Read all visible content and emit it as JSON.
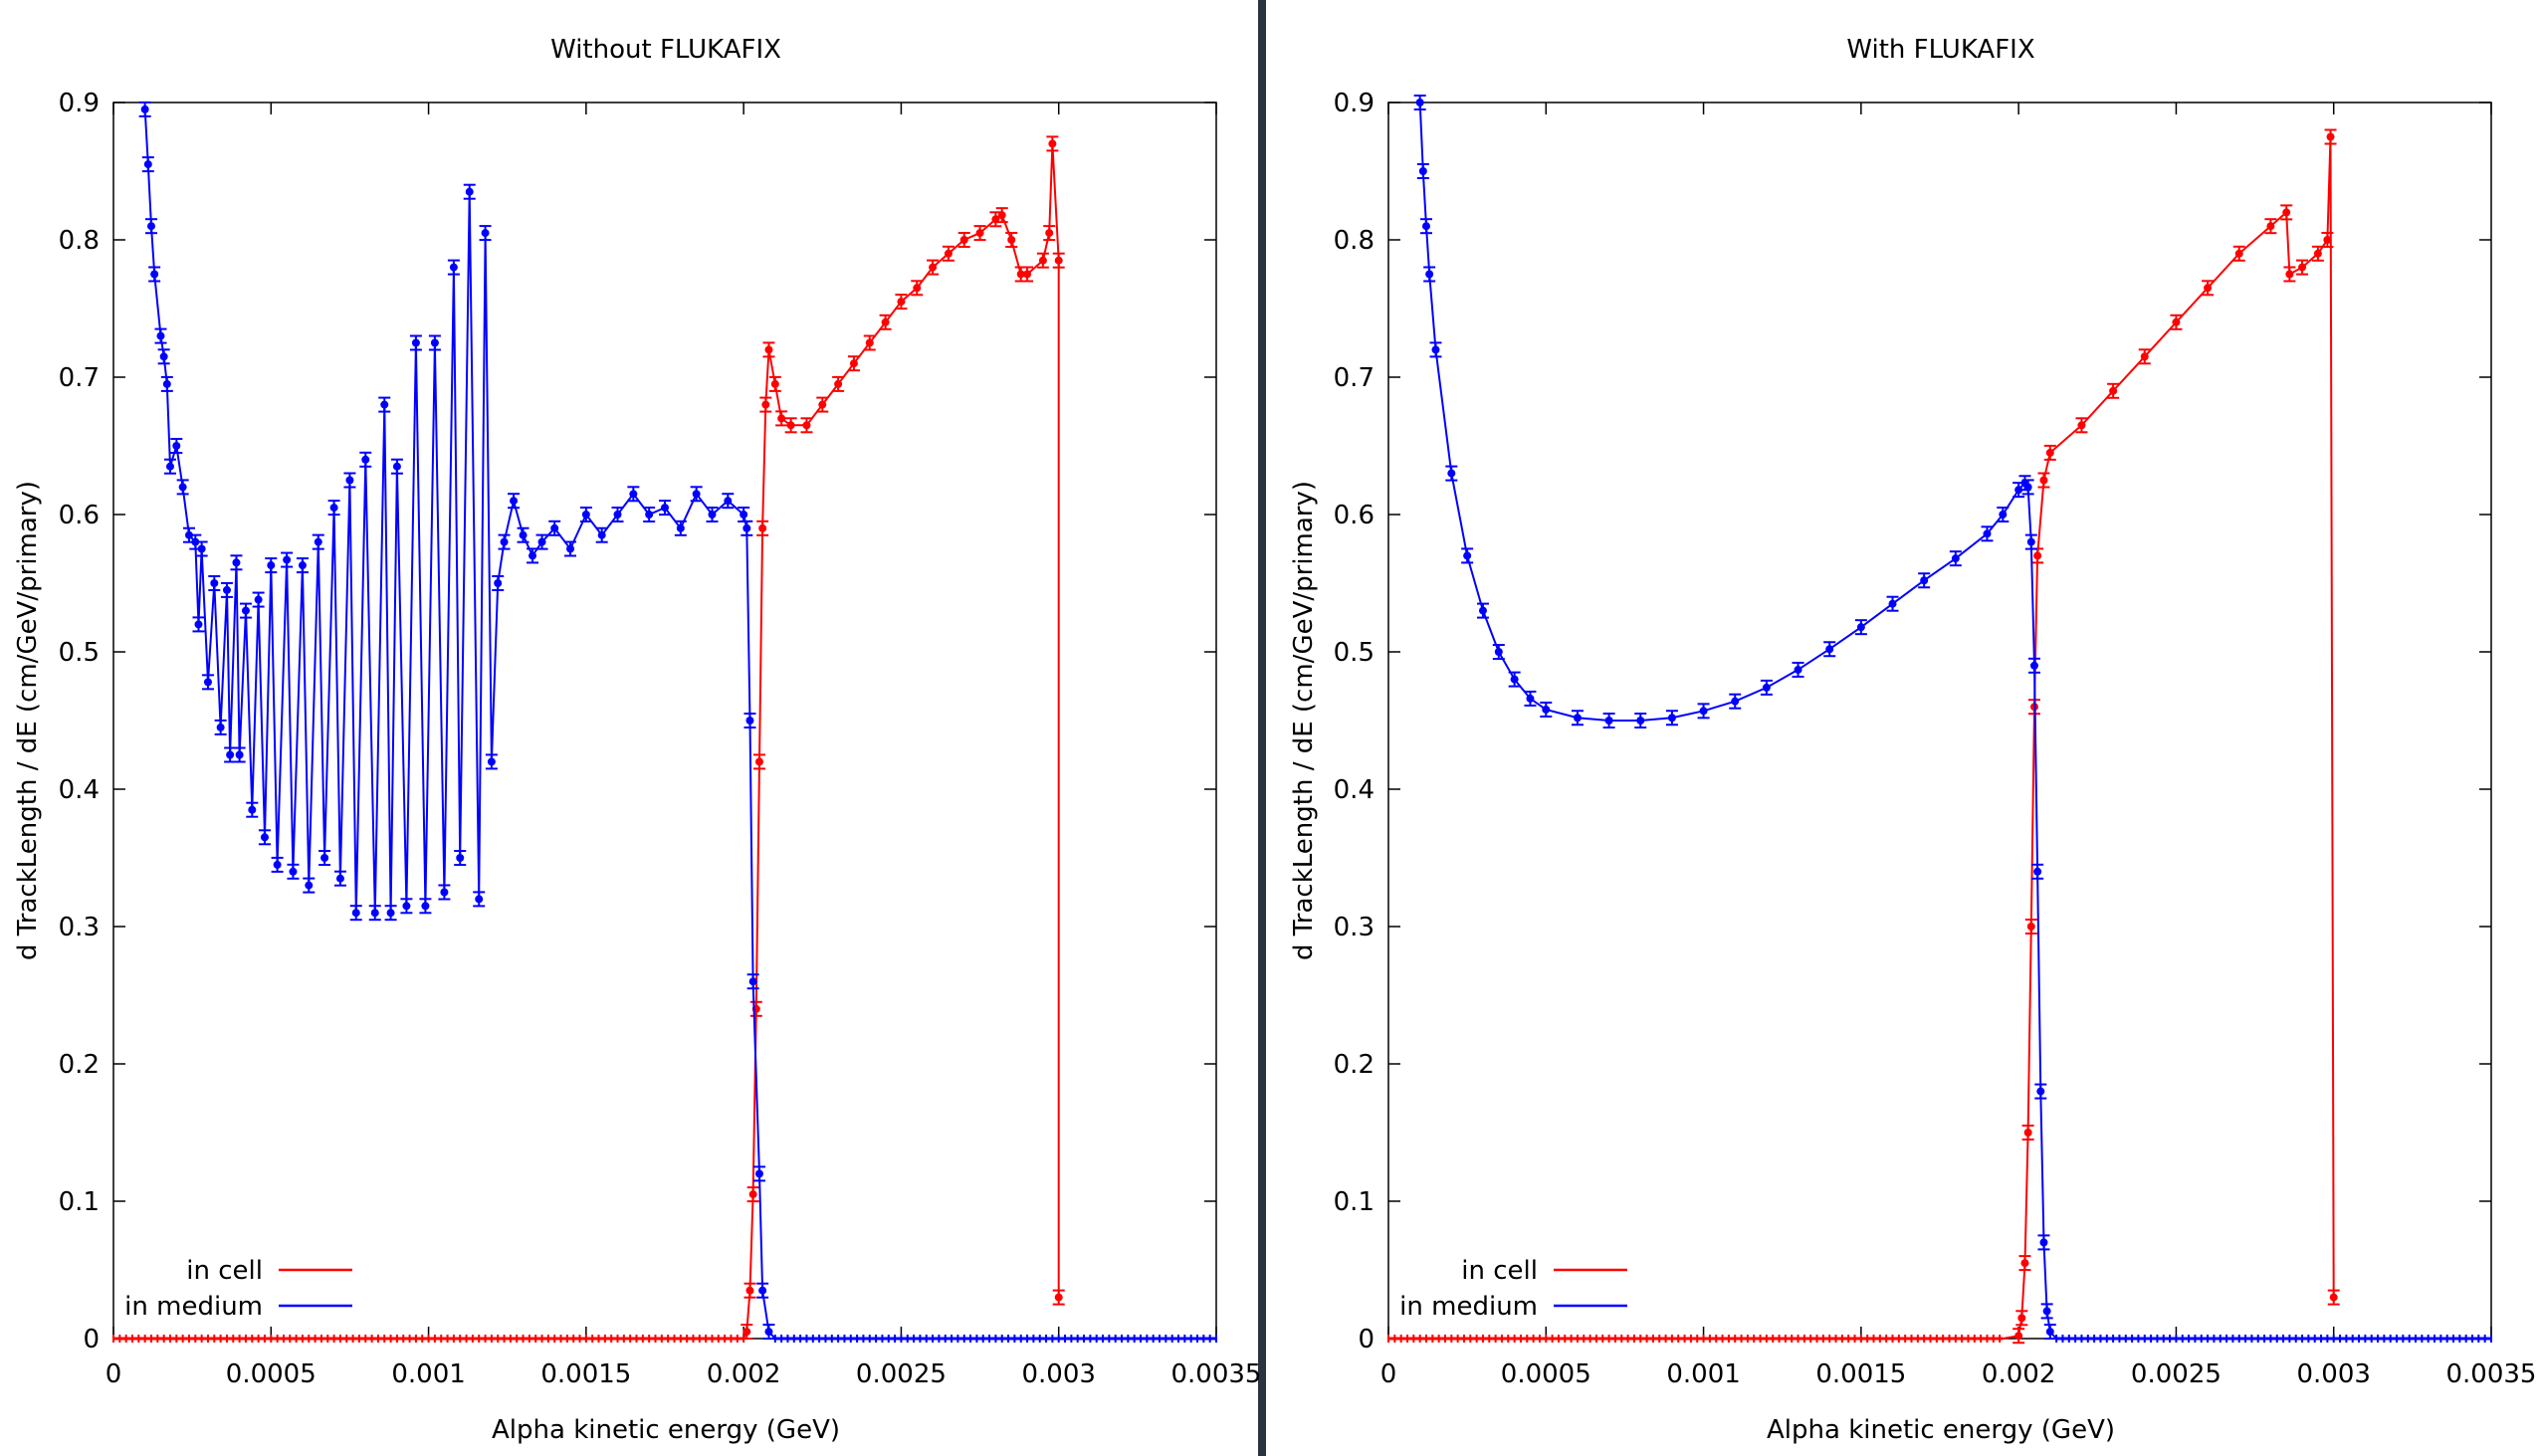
{
  "panels": [
    {
      "title": "Without FLUKAFIX",
      "xlabel": "Alpha kinetic energy (GeV)",
      "ylabel": "d TrackLength / dE (cm/GeV/primary)",
      "legend": [
        "in cell",
        "in medium"
      ]
    },
    {
      "title": "With FLUKAFIX",
      "xlabel": "Alpha kinetic energy (GeV)",
      "ylabel": "d TrackLength / dE (cm/GeV/primary)",
      "legend": [
        "in cell",
        "in medium"
      ]
    }
  ],
  "colors": {
    "in_cell": "#ff0000",
    "in_medium": "#0000ff",
    "divider": "#2a3440"
  },
  "chart_data": [
    {
      "type": "line",
      "title": "Without FLUKAFIX",
      "xlabel": "Alpha kinetic energy (GeV)",
      "ylabel": "d TrackLength / dE (cm/GeV/primary)",
      "xlim": [
        0,
        0.0035
      ],
      "ylim": [
        0,
        0.9
      ],
      "xticks": [
        "0",
        "0.0005",
        "0.001",
        "0.0015",
        "0.002",
        "0.0025",
        "0.003",
        "0.0035"
      ],
      "yticks": [
        "0",
        "0.1",
        "0.2",
        "0.3",
        "0.4",
        "0.5",
        "0.6",
        "0.7",
        "0.8",
        "0.9"
      ],
      "legend_position": "bottom-left",
      "error_bars": true,
      "series": [
        {
          "name": "in cell",
          "color": "#ff0000",
          "points": [
            [
              0.002,
              0.0
            ],
            [
              0.00201,
              0.005
            ],
            [
              0.00202,
              0.035
            ],
            [
              0.00203,
              0.105
            ],
            [
              0.00204,
              0.24
            ],
            [
              0.00205,
              0.42
            ],
            [
              0.00206,
              0.59
            ],
            [
              0.00207,
              0.68
            ],
            [
              0.00208,
              0.72
            ],
            [
              0.0021,
              0.695
            ],
            [
              0.00212,
              0.67
            ],
            [
              0.00215,
              0.665
            ],
            [
              0.0022,
              0.665
            ],
            [
              0.00225,
              0.68
            ],
            [
              0.0023,
              0.695
            ],
            [
              0.00235,
              0.71
            ],
            [
              0.0024,
              0.725
            ],
            [
              0.00245,
              0.74
            ],
            [
              0.0025,
              0.755
            ],
            [
              0.00255,
              0.765
            ],
            [
              0.0026,
              0.78
            ],
            [
              0.00265,
              0.79
            ],
            [
              0.0027,
              0.8
            ],
            [
              0.00275,
              0.805
            ],
            [
              0.0028,
              0.815
            ],
            [
              0.00282,
              0.818
            ],
            [
              0.00285,
              0.8
            ],
            [
              0.00288,
              0.775
            ],
            [
              0.0029,
              0.775
            ],
            [
              0.00295,
              0.785
            ],
            [
              0.00297,
              0.805
            ],
            [
              0.00298,
              0.87
            ],
            [
              0.003,
              0.785
            ],
            [
              0.003,
              0.03
            ]
          ]
        },
        {
          "name": "in medium",
          "color": "#0000ff",
          "points": [
            [
              0.0001,
              0.895
            ],
            [
              0.00011,
              0.855
            ],
            [
              0.00012,
              0.81
            ],
            [
              0.00013,
              0.775
            ],
            [
              0.00015,
              0.73
            ],
            [
              0.00016,
              0.715
            ],
            [
              0.00017,
              0.695
            ],
            [
              0.00018,
              0.635
            ],
            [
              0.0002,
              0.65
            ],
            [
              0.00022,
              0.62
            ],
            [
              0.00024,
              0.585
            ],
            [
              0.00026,
              0.58
            ],
            [
              0.00027,
              0.52
            ],
            [
              0.00028,
              0.575
            ],
            [
              0.0003,
              0.478
            ],
            [
              0.00032,
              0.55
            ],
            [
              0.00034,
              0.445
            ],
            [
              0.00036,
              0.545
            ],
            [
              0.00037,
              0.425
            ],
            [
              0.00039,
              0.565
            ],
            [
              0.0004,
              0.425
            ],
            [
              0.00042,
              0.53
            ],
            [
              0.00044,
              0.385
            ],
            [
              0.00046,
              0.538
            ],
            [
              0.00048,
              0.365
            ],
            [
              0.0005,
              0.563
            ],
            [
              0.00052,
              0.345
            ],
            [
              0.00055,
              0.567
            ],
            [
              0.00057,
              0.34
            ],
            [
              0.0006,
              0.563
            ],
            [
              0.00062,
              0.33
            ],
            [
              0.00065,
              0.58
            ],
            [
              0.00067,
              0.35
            ],
            [
              0.0007,
              0.605
            ],
            [
              0.00072,
              0.335
            ],
            [
              0.00075,
              0.625
            ],
            [
              0.00077,
              0.31
            ],
            [
              0.0008,
              0.64
            ],
            [
              0.00083,
              0.31
            ],
            [
              0.00086,
              0.68
            ],
            [
              0.00088,
              0.31
            ],
            [
              0.0009,
              0.635
            ],
            [
              0.00093,
              0.315
            ],
            [
              0.00096,
              0.725
            ],
            [
              0.00099,
              0.315
            ],
            [
              0.00102,
              0.725
            ],
            [
              0.00105,
              0.325
            ],
            [
              0.00108,
              0.78
            ],
            [
              0.0011,
              0.35
            ],
            [
              0.00113,
              0.835
            ],
            [
              0.00116,
              0.32
            ],
            [
              0.00118,
              0.805
            ],
            [
              0.0012,
              0.42
            ],
            [
              0.00122,
              0.55
            ],
            [
              0.00124,
              0.58
            ],
            [
              0.00127,
              0.61
            ],
            [
              0.0013,
              0.585
            ],
            [
              0.00133,
              0.57
            ],
            [
              0.00136,
              0.58
            ],
            [
              0.0014,
              0.59
            ],
            [
              0.00145,
              0.575
            ],
            [
              0.0015,
              0.6
            ],
            [
              0.00155,
              0.585
            ],
            [
              0.0016,
              0.6
            ],
            [
              0.00165,
              0.615
            ],
            [
              0.0017,
              0.6
            ],
            [
              0.00175,
              0.605
            ],
            [
              0.0018,
              0.59
            ],
            [
              0.00185,
              0.615
            ],
            [
              0.0019,
              0.6
            ],
            [
              0.00195,
              0.61
            ],
            [
              0.002,
              0.6
            ],
            [
              0.00201,
              0.59
            ],
            [
              0.00202,
              0.45
            ],
            [
              0.00203,
              0.26
            ],
            [
              0.00205,
              0.12
            ],
            [
              0.00206,
              0.035
            ],
            [
              0.00208,
              0.005
            ],
            [
              0.0021,
              0.0
            ],
            [
              0.0035,
              0.0
            ]
          ]
        }
      ]
    },
    {
      "type": "line",
      "title": "With FLUKAFIX",
      "xlabel": "Alpha kinetic energy (GeV)",
      "ylabel": "d TrackLength / dE (cm/GeV/primary)",
      "xlim": [
        0,
        0.0035
      ],
      "ylim": [
        0,
        0.9
      ],
      "xticks": [
        "0",
        "0.0005",
        "0.001",
        "0.0015",
        "0.002",
        "0.0025",
        "0.003",
        "0.0035"
      ],
      "yticks": [
        "0",
        "0.1",
        "0.2",
        "0.3",
        "0.4",
        "0.5",
        "0.6",
        "0.7",
        "0.8",
        "0.9"
      ],
      "legend_position": "bottom-left",
      "error_bars": true,
      "series": [
        {
          "name": "in cell",
          "color": "#ff0000",
          "points": [
            [
              0.00195,
              0.0
            ],
            [
              0.002,
              0.002
            ],
            [
              0.00201,
              0.015
            ],
            [
              0.00202,
              0.055
            ],
            [
              0.00203,
              0.15
            ],
            [
              0.00204,
              0.3
            ],
            [
              0.00205,
              0.46
            ],
            [
              0.00206,
              0.57
            ],
            [
              0.00208,
              0.625
            ],
            [
              0.0021,
              0.645
            ],
            [
              0.0022,
              0.665
            ],
            [
              0.0023,
              0.69
            ],
            [
              0.0024,
              0.715
            ],
            [
              0.0025,
              0.74
            ],
            [
              0.0026,
              0.765
            ],
            [
              0.0027,
              0.79
            ],
            [
              0.0028,
              0.81
            ],
            [
              0.00285,
              0.82
            ],
            [
              0.00286,
              0.775
            ],
            [
              0.0029,
              0.78
            ],
            [
              0.00295,
              0.79
            ],
            [
              0.00298,
              0.8
            ],
            [
              0.00299,
              0.875
            ],
            [
              0.003,
              0.03
            ]
          ]
        },
        {
          "name": "in medium",
          "color": "#0000ff",
          "points": [
            [
              0.0001,
              0.9
            ],
            [
              0.00011,
              0.85
            ],
            [
              0.00012,
              0.81
            ],
            [
              0.00013,
              0.775
            ],
            [
              0.00015,
              0.72
            ],
            [
              0.0002,
              0.63
            ],
            [
              0.00025,
              0.57
            ],
            [
              0.0003,
              0.53
            ],
            [
              0.00035,
              0.5
            ],
            [
              0.0004,
              0.48
            ],
            [
              0.00045,
              0.466
            ],
            [
              0.0005,
              0.458
            ],
            [
              0.0006,
              0.452
            ],
            [
              0.0007,
              0.45
            ],
            [
              0.0008,
              0.45
            ],
            [
              0.0009,
              0.452
            ],
            [
              0.001,
              0.457
            ],
            [
              0.0011,
              0.464
            ],
            [
              0.0012,
              0.474
            ],
            [
              0.0013,
              0.487
            ],
            [
              0.0014,
              0.502
            ],
            [
              0.0015,
              0.518
            ],
            [
              0.0016,
              0.535
            ],
            [
              0.0017,
              0.552
            ],
            [
              0.0018,
              0.568
            ],
            [
              0.0019,
              0.586
            ],
            [
              0.00195,
              0.6
            ],
            [
              0.002,
              0.618
            ],
            [
              0.00202,
              0.623
            ],
            [
              0.00203,
              0.62
            ],
            [
              0.00204,
              0.58
            ],
            [
              0.00205,
              0.49
            ],
            [
              0.00206,
              0.34
            ],
            [
              0.00207,
              0.18
            ],
            [
              0.00208,
              0.07
            ],
            [
              0.00209,
              0.02
            ],
            [
              0.0021,
              0.005
            ],
            [
              0.00212,
              0.0
            ],
            [
              0.0035,
              0.0
            ]
          ]
        }
      ]
    }
  ]
}
